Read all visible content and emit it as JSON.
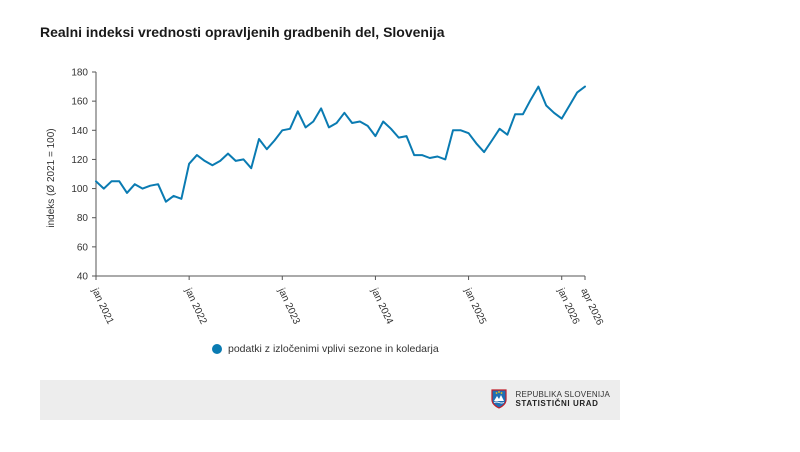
{
  "colors": {
    "series": "#0a7bb2",
    "axis": "#555555",
    "footer_bg": "#ededed"
  },
  "legend": {
    "label": "podatki z izločenimi vplivi sezone in koledarja"
  },
  "footer": {
    "logo_icon": "coat-of-arms-icon",
    "org_line1": "REPUBLIKA SLOVENIJA",
    "org_line2": "STATISTIČNI URAD"
  },
  "chart_data": {
    "type": "line",
    "title": "Realni indeksi vrednosti opravljenih gradbenih del, Slovenija",
    "ylabel": "indeks (Ø 2021 = 100)",
    "xlabel": "",
    "ylim": [
      40,
      180
    ],
    "yticks": [
      40,
      60,
      80,
      100,
      120,
      140,
      160,
      180
    ],
    "grid": false,
    "legend_position": "bottom",
    "x_tick_labels": [
      {
        "index": 0,
        "label": "jan 2021"
      },
      {
        "index": 12,
        "label": "jan 2022"
      },
      {
        "index": 24,
        "label": "jan 2023"
      },
      {
        "index": 36,
        "label": "jan 2024"
      },
      {
        "index": 48,
        "label": "jan 2025"
      },
      {
        "index": 60,
        "label": "jan 2026"
      },
      {
        "index": 63,
        "label": "apr 2026"
      }
    ],
    "series": [
      {
        "name": "podatki z izločenimi vplivi sezone in koledarja",
        "values": [
          105,
          100,
          105,
          105,
          97,
          103,
          100,
          102,
          103,
          91,
          95,
          93,
          117,
          123,
          119,
          116,
          119,
          124,
          119,
          120,
          114,
          134,
          127,
          133,
          140,
          141,
          153,
          142,
          146,
          155,
          142,
          145,
          152,
          145,
          146,
          143,
          136,
          146,
          141,
          135,
          136,
          123,
          123,
          121,
          122,
          120,
          140,
          140,
          138,
          131,
          125,
          133,
          141,
          137,
          151,
          151,
          161,
          170,
          157,
          152,
          148,
          157,
          166,
          170
        ]
      }
    ]
  }
}
